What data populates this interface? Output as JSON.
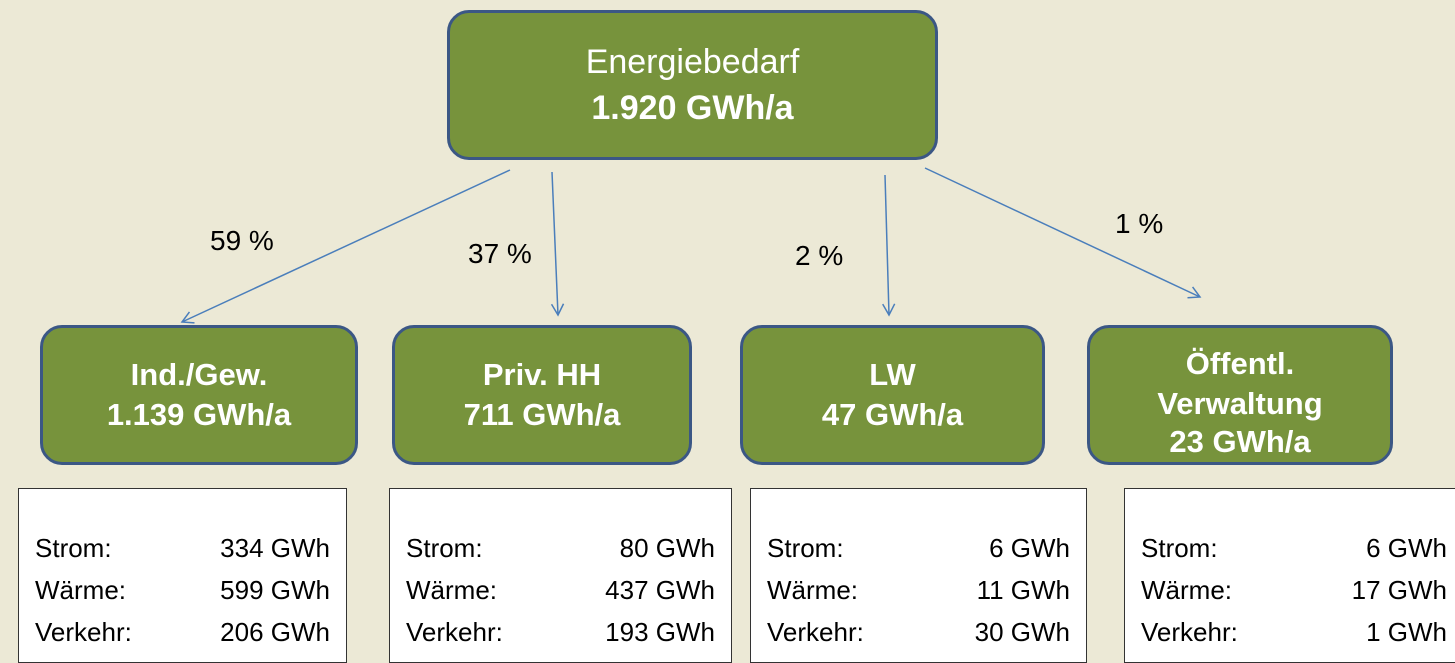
{
  "root": {
    "label": "Energiebedarf",
    "value": "1.920 GWh/a"
  },
  "branches": [
    {
      "share": "59 %",
      "name": "Ind./Gew.",
      "value": "1.139 GWh/a",
      "details": [
        {
          "label": "Strom:",
          "value": "334 GWh"
        },
        {
          "label": "Wärme:",
          "value": "599 GWh"
        },
        {
          "label": "Verkehr:",
          "value": "206 GWh"
        }
      ]
    },
    {
      "share": "37 %",
      "name": "Priv. HH",
      "value": "711 GWh/a",
      "details": [
        {
          "label": "Strom:",
          "value": "80 GWh"
        },
        {
          "label": "Wärme:",
          "value": "437 GWh"
        },
        {
          "label": "Verkehr:",
          "value": "193 GWh"
        }
      ]
    },
    {
      "share": "2 %",
      "name": "LW",
      "value": "47 GWh/a",
      "details": [
        {
          "label": "Strom:",
          "value": "6 GWh"
        },
        {
          "label": "Wärme:",
          "value": "11 GWh"
        },
        {
          "label": "Verkehr:",
          "value": "30 GWh"
        }
      ]
    },
    {
      "share": "1 %",
      "name": "Öffentl. Verwaltung",
      "value": "23 GWh/a",
      "details": [
        {
          "label": "Strom:",
          "value": "6 GWh"
        },
        {
          "label": "Wärme:",
          "value": "17 GWh"
        },
        {
          "label": "Verkehr:",
          "value": "1 GWh"
        }
      ]
    }
  ]
}
